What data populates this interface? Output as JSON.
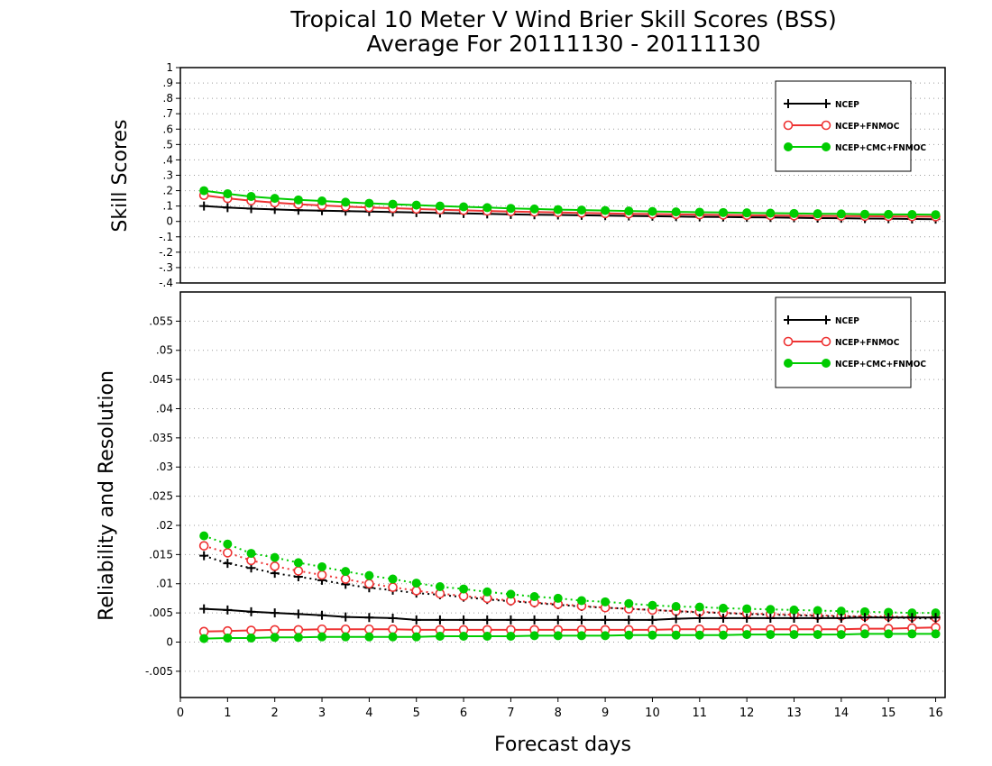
{
  "title_line1": "Tropical 10 Meter V Wind Brier Skill Scores (BSS)",
  "title_line2": "Average For 20111130 - 20111130",
  "chart_data": [
    {
      "type": "line",
      "ylabel": "Skill Scores",
      "ylim": [
        -0.4,
        1
      ],
      "yticks": [
        -0.4,
        -0.3,
        -0.2,
        -0.1,
        0,
        0.1,
        0.2,
        0.3,
        0.4,
        0.5,
        0.6,
        0.7,
        0.8,
        0.9,
        1
      ],
      "xlim": [
        0,
        16.2
      ],
      "grid": true,
      "legend_position": "top-right",
      "x": [
        0.5,
        1,
        1.5,
        2,
        2.5,
        3,
        3.5,
        4,
        4.5,
        5,
        5.5,
        6,
        6.5,
        7,
        7.5,
        8,
        8.5,
        9,
        9.5,
        10,
        10.5,
        11,
        11.5,
        12,
        12.5,
        13,
        13.5,
        14,
        14.5,
        15,
        15.5,
        16
      ],
      "series": [
        {
          "name": "NCEP",
          "color": "#000000",
          "marker": "plus",
          "line": "solid",
          "values": [
            0.1,
            0.09,
            0.083,
            0.078,
            0.073,
            0.07,
            0.067,
            0.064,
            0.061,
            0.058,
            0.055,
            0.052,
            0.049,
            0.046,
            0.044,
            0.042,
            0.04,
            0.038,
            0.036,
            0.034,
            0.032,
            0.03,
            0.029,
            0.027,
            0.026,
            0.024,
            0.022,
            0.021,
            0.019,
            0.018,
            0.016,
            0.015
          ]
        },
        {
          "name": "NCEP+FNMOC",
          "color": "#ee3333",
          "marker": "circle-open",
          "line": "solid",
          "values": [
            0.17,
            0.15,
            0.135,
            0.122,
            0.112,
            0.104,
            0.097,
            0.091,
            0.086,
            0.081,
            0.076,
            0.072,
            0.068,
            0.064,
            0.061,
            0.058,
            0.055,
            0.052,
            0.05,
            0.048,
            0.046,
            0.044,
            0.042,
            0.04,
            0.039,
            0.037,
            0.036,
            0.035,
            0.034,
            0.033,
            0.032,
            0.031
          ]
        },
        {
          "name": "NCEP+CMC+FNMOC",
          "color": "#00cc00",
          "marker": "circle-filled",
          "line": "solid",
          "values": [
            0.2,
            0.18,
            0.162,
            0.15,
            0.14,
            0.133,
            0.125,
            0.118,
            0.112,
            0.106,
            0.1,
            0.095,
            0.09,
            0.085,
            0.081,
            0.077,
            0.074,
            0.071,
            0.068,
            0.065,
            0.062,
            0.06,
            0.058,
            0.056,
            0.054,
            0.052,
            0.05,
            0.049,
            0.047,
            0.046,
            0.045,
            0.044
          ]
        }
      ]
    },
    {
      "type": "line",
      "ylabel": "Reliability and Resolution",
      "xlabel": "Forecast days",
      "ylim": [
        -0.0095,
        0.06
      ],
      "yticks": [
        -0.005,
        0,
        0.005,
        0.01,
        0.015,
        0.02,
        0.025,
        0.03,
        0.035,
        0.04,
        0.045,
        0.05,
        0.055
      ],
      "xlim": [
        0,
        16.2
      ],
      "xticks": [
        0,
        1,
        2,
        3,
        4,
        5,
        6,
        7,
        8,
        9,
        10,
        11,
        12,
        13,
        14,
        15,
        16
      ],
      "grid": true,
      "legend_position": "top-right",
      "x": [
        0.5,
        1,
        1.5,
        2,
        2.5,
        3,
        3.5,
        4,
        4.5,
        5,
        5.5,
        6,
        6.5,
        7,
        7.5,
        8,
        8.5,
        9,
        9.5,
        10,
        10.5,
        11,
        11.5,
        12,
        12.5,
        13,
        13.5,
        14,
        14.5,
        15,
        15.5,
        16
      ],
      "legend": [
        {
          "name": "NCEP",
          "color": "#000000",
          "marker": "plus"
        },
        {
          "name": "NCEP+FNMOC",
          "color": "#ee3333",
          "marker": "circle-open"
        },
        {
          "name": "NCEP+CMC+FNMOC",
          "color": "#00cc00",
          "marker": "circle-filled"
        }
      ],
      "series": [
        {
          "name": "NCEP resolution",
          "color": "#000000",
          "marker": "plus",
          "line": "dotted",
          "values": [
            0.0148,
            0.0135,
            0.0127,
            0.0118,
            0.0112,
            0.0106,
            0.0099,
            0.0093,
            0.0089,
            0.0084,
            0.0081,
            0.0077,
            0.0073,
            0.007,
            0.0067,
            0.0064,
            0.0061,
            0.0059,
            0.0057,
            0.0055,
            0.0053,
            0.0051,
            0.005,
            0.0048,
            0.0047,
            0.0046,
            0.0045,
            0.0044,
            0.0043,
            0.0042,
            0.0041,
            0.004
          ]
        },
        {
          "name": "NCEP+FNMOC resolution",
          "color": "#ee3333",
          "marker": "circle-open",
          "line": "dotted",
          "values": [
            0.0165,
            0.0153,
            0.014,
            0.013,
            0.0122,
            0.0115,
            0.0108,
            0.01,
            0.0094,
            0.0088,
            0.0083,
            0.0079,
            0.0075,
            0.0071,
            0.0068,
            0.0065,
            0.0062,
            0.0059,
            0.0057,
            0.0055,
            0.0053,
            0.0052,
            0.005,
            0.0049,
            0.0048,
            0.0047,
            0.0046,
            0.0045,
            0.0044,
            0.0044,
            0.0043,
            0.0042
          ]
        },
        {
          "name": "NCEP+CMC+FNMOC resolution",
          "color": "#00cc00",
          "marker": "circle-filled",
          "line": "dotted",
          "values": [
            0.0182,
            0.0168,
            0.0152,
            0.0145,
            0.0136,
            0.0129,
            0.0121,
            0.0114,
            0.0108,
            0.0101,
            0.0095,
            0.0091,
            0.0086,
            0.0082,
            0.0078,
            0.0075,
            0.0071,
            0.0069,
            0.0066,
            0.0063,
            0.0061,
            0.006,
            0.0058,
            0.0057,
            0.0056,
            0.0055,
            0.0054,
            0.0053,
            0.0052,
            0.0051,
            0.005,
            0.005
          ]
        },
        {
          "name": "NCEP reliability",
          "color": "#000000",
          "marker": "plus",
          "line": "solid",
          "values": [
            0.0057,
            0.0055,
            0.0052,
            0.005,
            0.0048,
            0.0046,
            0.0043,
            0.0042,
            0.0041,
            0.0038,
            0.0038,
            0.0038,
            0.0038,
            0.0038,
            0.0038,
            0.0038,
            0.0038,
            0.0038,
            0.0038,
            0.0038,
            0.004,
            0.0041,
            0.0041,
            0.0041,
            0.0041,
            0.0041,
            0.0041,
            0.0041,
            0.0042,
            0.0042,
            0.0042,
            0.0042
          ]
        },
        {
          "name": "NCEP+FNMOC reliability",
          "color": "#ee3333",
          "marker": "circle-open",
          "line": "solid",
          "values": [
            0.0018,
            0.0019,
            0.002,
            0.0021,
            0.0021,
            0.0022,
            0.0022,
            0.0022,
            0.0022,
            0.0021,
            0.0021,
            0.0021,
            0.0021,
            0.0021,
            0.0021,
            0.0021,
            0.0021,
            0.0021,
            0.0021,
            0.0021,
            0.0022,
            0.0022,
            0.0022,
            0.0022,
            0.0022,
            0.0022,
            0.0022,
            0.0022,
            0.0023,
            0.0023,
            0.0024,
            0.0025
          ]
        },
        {
          "name": "NCEP+CMC+FNMOC reliability",
          "color": "#00cc00",
          "marker": "circle-filled",
          "line": "solid",
          "values": [
            0.0006,
            0.0007,
            0.0007,
            0.0008,
            0.0008,
            0.0009,
            0.0009,
            0.0009,
            0.0009,
            0.0009,
            0.001,
            0.001,
            0.001,
            0.001,
            0.0011,
            0.0011,
            0.0011,
            0.0011,
            0.0012,
            0.0012,
            0.0012,
            0.0012,
            0.0012,
            0.0013,
            0.0013,
            0.0013,
            0.0013,
            0.0013,
            0.0014,
            0.0014,
            0.0014,
            0.0014
          ]
        }
      ]
    }
  ]
}
